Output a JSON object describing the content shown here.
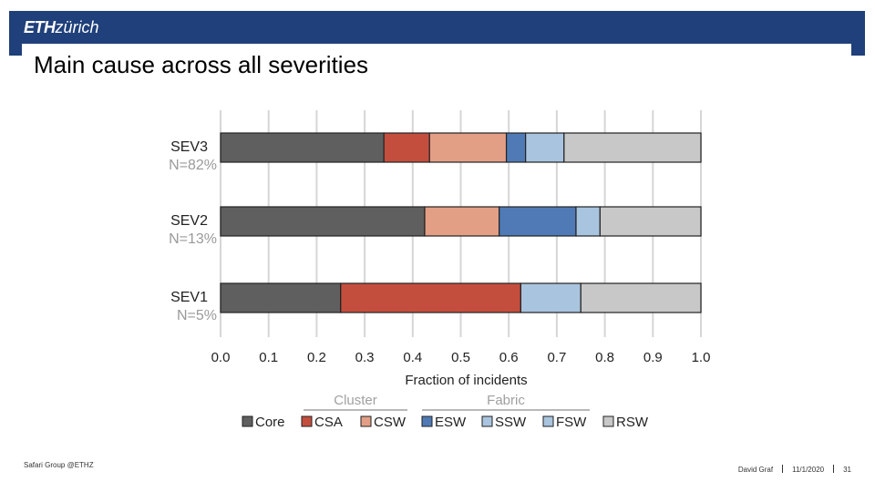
{
  "header": {
    "logo_eth": "ETH",
    "logo_zurich": "zürich"
  },
  "slide": {
    "title": "Main cause across all severities"
  },
  "footer": {
    "left": "Safari Group @ETHZ",
    "author": "David Graf",
    "date": "11/1/2020",
    "page": "31"
  },
  "chart_data": {
    "type": "bar",
    "orientation": "horizontal",
    "stacked": true,
    "categories": [
      {
        "name": "SEV3",
        "sub": "N=82%"
      },
      {
        "name": "SEV2",
        "sub": "N=13%"
      },
      {
        "name": "SEV1",
        "sub": "N=5%"
      }
    ],
    "series": [
      {
        "name": "Core",
        "color": "#5f5f5f",
        "values": [
          0.34,
          0.425,
          0.25
        ]
      },
      {
        "name": "CSA",
        "color": "#c44e3d",
        "values": [
          0.095,
          0.0,
          0.375
        ]
      },
      {
        "name": "CSW",
        "color": "#e39f86",
        "values": [
          0.16,
          0.155,
          0.0
        ]
      },
      {
        "name": "ESW",
        "color": "#4f7ab5",
        "values": [
          0.04,
          0.16,
          0.0
        ]
      },
      {
        "name": "SSW",
        "color": "#a9c4de",
        "values": [
          0.0,
          0.0,
          0.0
        ]
      },
      {
        "name": "FSW",
        "color": "#a9c4de",
        "values": [
          0.08,
          0.05,
          0.125
        ]
      },
      {
        "name": "RSW",
        "color": "#c8c8c8",
        "values": [
          0.285,
          0.21,
          0.25
        ]
      }
    ],
    "xlabel": "Fraction of incidents",
    "xlim": [
      0,
      1
    ],
    "xticks": [
      "0.0",
      "0.1",
      "0.2",
      "0.3",
      "0.4",
      "0.5",
      "0.6",
      "0.7",
      "0.8",
      "0.9",
      "1.0"
    ],
    "grid": true,
    "legend": {
      "groups": [
        {
          "label": "Cluster",
          "items": [
            "Core",
            "CSA",
            "CSW"
          ]
        },
        {
          "label": "Fabric",
          "items": [
            "ESW",
            "SSW",
            "FSW",
            "RSW"
          ]
        }
      ],
      "placement": "bottom"
    }
  }
}
